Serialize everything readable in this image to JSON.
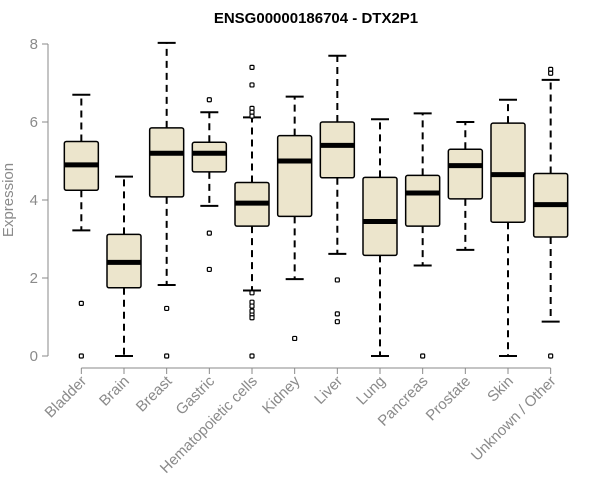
{
  "chart_data": {
    "type": "boxplot",
    "title": "ENSG00000186704 - DTX2P1",
    "xlabel": "",
    "ylabel": "Expression",
    "ylim": [
      0,
      8
    ],
    "yticks": [
      0,
      2,
      4,
      6,
      8
    ],
    "grid": false,
    "colors": {
      "box_fill": "#ece5cc",
      "box_stroke": "#000000",
      "axis": "#8a8a8a"
    },
    "categories": [
      "Bladder",
      "Brain",
      "Breast",
      "Gastric",
      "Hematopoietic cells",
      "Kidney",
      "Liver",
      "Lung",
      "Pancreas",
      "Prostate",
      "Skin",
      "Unknown / Other"
    ],
    "series": [
      {
        "name": "Bladder",
        "whisker_low": 3.22,
        "q1": 4.25,
        "median": 4.9,
        "q3": 5.5,
        "whisker_high": 6.7,
        "outliers": [
          1.35,
          0.0
        ]
      },
      {
        "name": "Brain",
        "whisker_low": 0.0,
        "q1": 1.75,
        "median": 2.4,
        "q3": 3.12,
        "whisker_high": 4.6,
        "outliers": []
      },
      {
        "name": "Breast",
        "whisker_low": 1.82,
        "q1": 4.08,
        "median": 5.2,
        "q3": 5.85,
        "whisker_high": 8.03,
        "outliers": [
          1.22,
          0.0
        ]
      },
      {
        "name": "Gastric",
        "whisker_low": 3.85,
        "q1": 4.72,
        "median": 5.2,
        "q3": 5.48,
        "whisker_high": 6.25,
        "outliers": [
          6.57,
          3.15,
          2.22
        ]
      },
      {
        "name": "Hematopoietic cells",
        "whisker_low": 1.68,
        "q1": 3.33,
        "median": 3.92,
        "q3": 4.45,
        "whisker_high": 6.12,
        "outliers": [
          7.4,
          6.95,
          6.35,
          6.25,
          6.15,
          1.62,
          1.38,
          1.28,
          1.15,
          1.05,
          0.98,
          0.0
        ]
      },
      {
        "name": "Kidney",
        "whisker_low": 1.97,
        "q1": 3.58,
        "median": 5.0,
        "q3": 5.65,
        "whisker_high": 6.65,
        "outliers": [
          0.45
        ]
      },
      {
        "name": "Liver",
        "whisker_low": 2.62,
        "q1": 4.57,
        "median": 5.4,
        "q3": 6.0,
        "whisker_high": 7.7,
        "outliers": [
          1.95,
          1.08,
          0.88
        ]
      },
      {
        "name": "Lung",
        "whisker_low": 0.0,
        "q1": 2.58,
        "median": 3.45,
        "q3": 4.58,
        "whisker_high": 6.07,
        "outliers": []
      },
      {
        "name": "Pancreas",
        "whisker_low": 2.32,
        "q1": 3.33,
        "median": 4.18,
        "q3": 4.63,
        "whisker_high": 6.22,
        "outliers": [
          0.0
        ]
      },
      {
        "name": "Prostate",
        "whisker_low": 2.72,
        "q1": 4.03,
        "median": 4.88,
        "q3": 5.3,
        "whisker_high": 6.0,
        "outliers": []
      },
      {
        "name": "Skin",
        "whisker_low": 0.0,
        "q1": 3.43,
        "median": 4.65,
        "q3": 5.97,
        "whisker_high": 6.57,
        "outliers": []
      },
      {
        "name": "Unknown / Other",
        "whisker_low": 0.88,
        "q1": 3.05,
        "median": 3.88,
        "q3": 4.68,
        "whisker_high": 7.08,
        "outliers": [
          7.35,
          7.25,
          0.0
        ]
      }
    ]
  }
}
